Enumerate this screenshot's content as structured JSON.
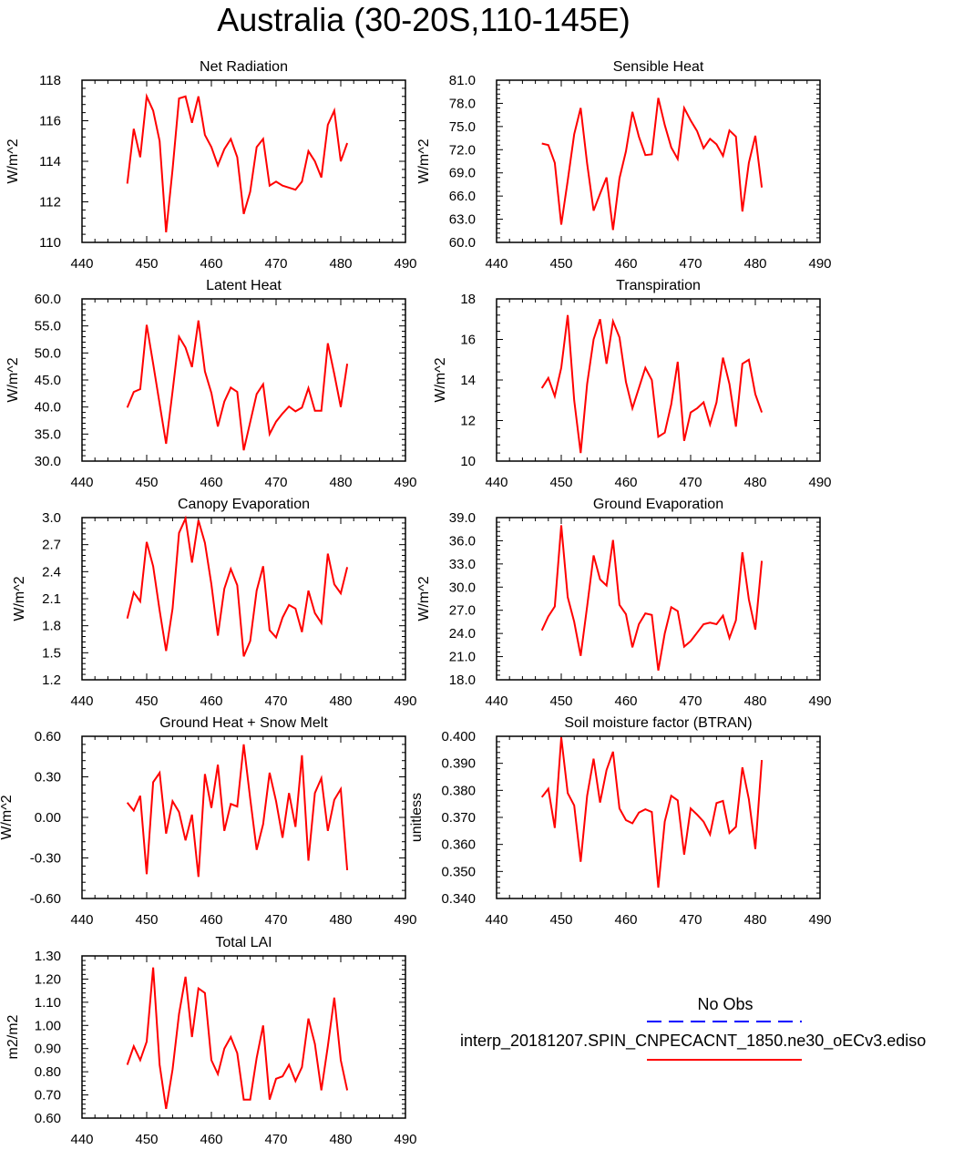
{
  "title": "Australia (30-20S,110-145E)",
  "colors": {
    "series": "#ff0000",
    "obs": "#0000ff",
    "axis": "#000000"
  },
  "legend": {
    "obs_label": "No Obs",
    "model_label": "interp_20181207.SPIN_CNPECACNT_1850.ne30_oECv3.ediso"
  },
  "chart_data": [
    {
      "type": "line",
      "title": "Net Radiation",
      "ylabel": "W/m^2",
      "xlabel": "",
      "xlim": [
        440,
        490
      ],
      "xticks": [
        440,
        450,
        460,
        470,
        480,
        490
      ],
      "ylim": [
        110,
        118
      ],
      "yticks": [
        "110",
        "112",
        "114",
        "116",
        "118"
      ],
      "x": [
        447,
        448,
        449,
        450,
        451,
        452,
        453,
        454,
        455,
        456,
        457,
        458,
        459,
        460,
        461,
        462,
        463,
        464,
        465,
        466,
        467,
        468,
        469,
        470,
        471,
        472,
        473,
        474,
        475,
        476,
        477,
        478,
        479,
        480,
        481
      ],
      "series": [
        {
          "name": "interp_20181207.SPIN_CNPECACNT_1850.ne30_oECv3.ediso",
          "values": [
            112.9,
            115.6,
            114.2,
            117.2,
            116.5,
            115.0,
            110.5,
            113.6,
            117.1,
            117.2,
            115.9,
            117.2,
            115.3,
            114.7,
            113.8,
            114.6,
            115.1,
            114.2,
            111.4,
            112.5,
            114.7,
            115.1,
            112.8,
            113.0,
            112.8,
            112.7,
            112.6,
            113.0,
            114.5,
            114.0,
            113.2,
            115.8,
            116.5,
            114.0,
            114.9
          ]
        }
      ]
    },
    {
      "type": "line",
      "title": "Sensible Heat",
      "ylabel": "W/m^2",
      "xlabel": "",
      "xlim": [
        440,
        490
      ],
      "xticks": [
        440,
        450,
        460,
        470,
        480,
        490
      ],
      "ylim": [
        60,
        81
      ],
      "yticks": [
        "60.0",
        "63.0",
        "66.0",
        "69.0",
        "72.0",
        "75.0",
        "78.0",
        "81.0"
      ],
      "x": [
        447,
        448,
        449,
        450,
        451,
        452,
        453,
        454,
        455,
        456,
        457,
        458,
        459,
        460,
        461,
        462,
        463,
        464,
        465,
        466,
        467,
        468,
        469,
        470,
        471,
        472,
        473,
        474,
        475,
        476,
        477,
        478,
        479,
        480,
        481
      ],
      "series": [
        {
          "name": "interp_20181207.SPIN_CNPECACNT_1850.ne30_oECv3.ediso",
          "values": [
            72.8,
            72.6,
            70.3,
            62.3,
            68.0,
            74.0,
            77.4,
            70.2,
            64.1,
            66.3,
            68.4,
            61.6,
            68.3,
            71.8,
            76.9,
            73.7,
            71.3,
            71.4,
            78.7,
            75.2,
            72.3,
            70.8,
            77.4,
            75.8,
            74.4,
            72.2,
            73.4,
            72.7,
            71.2,
            74.5,
            73.7,
            64.0,
            70.3,
            73.8,
            67.1
          ]
        }
      ]
    },
    {
      "type": "line",
      "title": "Latent Heat",
      "ylabel": "W/m^2",
      "xlabel": "",
      "xlim": [
        440,
        490
      ],
      "xticks": [
        440,
        450,
        460,
        470,
        480,
        490
      ],
      "ylim": [
        30,
        60
      ],
      "yticks": [
        "30.0",
        "35.0",
        "40.0",
        "45.0",
        "50.0",
        "55.0",
        "60.0"
      ],
      "x": [
        447,
        448,
        449,
        450,
        451,
        452,
        453,
        454,
        455,
        456,
        457,
        458,
        459,
        460,
        461,
        462,
        463,
        464,
        465,
        466,
        467,
        468,
        469,
        470,
        471,
        472,
        473,
        474,
        475,
        476,
        477,
        478,
        479,
        480,
        481
      ],
      "series": [
        {
          "name": "interp_20181207.SPIN_CNPECACNT_1850.ne30_oECv3.ediso",
          "values": [
            39.9,
            42.8,
            43.3,
            55.2,
            48.0,
            40.6,
            33.2,
            42.9,
            53.0,
            51.0,
            47.4,
            56.0,
            46.6,
            42.6,
            36.4,
            41.0,
            43.6,
            42.8,
            32.0,
            37.2,
            42.4,
            44.2,
            35.0,
            37.3,
            38.8,
            40.1,
            39.2,
            39.9,
            43.5,
            39.3,
            39.3,
            51.8,
            46.1,
            40.0,
            48.0
          ]
        }
      ]
    },
    {
      "type": "line",
      "title": "Transpiration",
      "ylabel": "W/m^2",
      "xlabel": "",
      "xlim": [
        440,
        490
      ],
      "xticks": [
        440,
        450,
        460,
        470,
        480,
        490
      ],
      "ylim": [
        10,
        18
      ],
      "yticks": [
        "10",
        "12",
        "14",
        "16",
        "18"
      ],
      "x": [
        447,
        448,
        449,
        450,
        451,
        452,
        453,
        454,
        455,
        456,
        457,
        458,
        459,
        460,
        461,
        462,
        463,
        464,
        465,
        466,
        467,
        468,
        469,
        470,
        471,
        472,
        473,
        474,
        475,
        476,
        477,
        478,
        479,
        480,
        481
      ],
      "series": [
        {
          "name": "interp_20181207.SPIN_CNPECACNT_1850.ne30_oECv3.ediso",
          "values": [
            13.6,
            14.1,
            13.2,
            14.6,
            17.2,
            13.0,
            10.4,
            13.8,
            16.0,
            17.0,
            14.8,
            16.9,
            16.1,
            13.9,
            12.6,
            13.6,
            14.6,
            14.0,
            11.2,
            11.4,
            12.8,
            14.9,
            11.0,
            12.4,
            12.6,
            12.9,
            11.8,
            12.9,
            15.1,
            13.8,
            11.7,
            14.8,
            15.0,
            13.3,
            12.4
          ]
        }
      ]
    },
    {
      "type": "line",
      "title": "Canopy Evaporation",
      "ylabel": "W/m^2",
      "xlabel": "",
      "xlim": [
        440,
        490
      ],
      "xticks": [
        440,
        450,
        460,
        470,
        480,
        490
      ],
      "ylim": [
        1.2,
        3.0
      ],
      "yticks": [
        "1.2",
        "1.5",
        "1.8",
        "2.1",
        "2.4",
        "2.7",
        "3.0"
      ],
      "x": [
        447,
        448,
        449,
        450,
        451,
        452,
        453,
        454,
        455,
        456,
        457,
        458,
        459,
        460,
        461,
        462,
        463,
        464,
        465,
        466,
        467,
        468,
        469,
        470,
        471,
        472,
        473,
        474,
        475,
        476,
        477,
        478,
        479,
        480,
        481
      ],
      "series": [
        {
          "name": "interp_20181207.SPIN_CNPECACNT_1850.ne30_oECv3.ediso",
          "values": [
            1.88,
            2.17,
            2.07,
            2.73,
            2.46,
            1.97,
            1.52,
            1.99,
            2.83,
            2.99,
            2.5,
            2.97,
            2.72,
            2.26,
            1.69,
            2.21,
            2.43,
            2.25,
            1.46,
            1.63,
            2.19,
            2.46,
            1.75,
            1.67,
            1.89,
            2.03,
            1.99,
            1.73,
            2.19,
            1.94,
            1.83,
            2.6,
            2.26,
            2.16,
            2.45
          ]
        }
      ]
    },
    {
      "type": "line",
      "title": "Ground Evaporation",
      "ylabel": "W/m^2",
      "xlabel": "",
      "xlim": [
        440,
        490
      ],
      "xticks": [
        440,
        450,
        460,
        470,
        480,
        490
      ],
      "ylim": [
        18,
        39
      ],
      "yticks": [
        "18.0",
        "21.0",
        "24.0",
        "27.0",
        "30.0",
        "33.0",
        "36.0",
        "39.0"
      ],
      "x": [
        447,
        448,
        449,
        450,
        451,
        452,
        453,
        454,
        455,
        456,
        457,
        458,
        459,
        460,
        461,
        462,
        463,
        464,
        465,
        466,
        467,
        468,
        469,
        470,
        471,
        472,
        473,
        474,
        475,
        476,
        477,
        478,
        479,
        480,
        481
      ],
      "series": [
        {
          "name": "interp_20181207.SPIN_CNPECACNT_1850.ne30_oECv3.ediso",
          "values": [
            24.4,
            26.2,
            27.5,
            38.0,
            28.7,
            25.5,
            21.1,
            27.5,
            34.1,
            31.0,
            30.2,
            36.1,
            27.7,
            26.5,
            22.2,
            25.2,
            26.6,
            26.4,
            19.2,
            24.0,
            27.4,
            26.9,
            22.3,
            23.0,
            24.1,
            25.2,
            25.4,
            25.2,
            26.3,
            23.4,
            25.7,
            34.5,
            28.4,
            24.5,
            33.4
          ]
        }
      ]
    },
    {
      "type": "line",
      "title": "Ground Heat + Snow Melt",
      "ylabel": "W/m^2",
      "xlabel": "",
      "xlim": [
        440,
        490
      ],
      "xticks": [
        440,
        450,
        460,
        470,
        480,
        490
      ],
      "ylim": [
        -0.6,
        0.6
      ],
      "yticks": [
        "-0.60",
        "-0.30",
        "0.00",
        "0.30",
        "0.60"
      ],
      "x": [
        447,
        448,
        449,
        450,
        451,
        452,
        453,
        454,
        455,
        456,
        457,
        458,
        459,
        460,
        461,
        462,
        463,
        464,
        465,
        466,
        467,
        468,
        469,
        470,
        471,
        472,
        473,
        474,
        475,
        476,
        477,
        478,
        479,
        480,
        481
      ],
      "series": [
        {
          "name": "interp_20181207.SPIN_CNPECACNT_1850.ne30_oECv3.ediso",
          "values": [
            0.11,
            0.05,
            0.16,
            -0.42,
            0.26,
            0.33,
            -0.12,
            0.12,
            0.04,
            -0.17,
            0.02,
            -0.44,
            0.32,
            0.07,
            0.39,
            -0.1,
            0.1,
            0.08,
            0.54,
            0.14,
            -0.24,
            -0.05,
            0.33,
            0.12,
            -0.15,
            0.18,
            -0.07,
            0.46,
            -0.32,
            0.18,
            0.29,
            -0.1,
            0.13,
            0.21,
            -0.39
          ]
        }
      ]
    },
    {
      "type": "line",
      "title": "Soil moisture factor (BTRAN)",
      "ylabel": "unitless",
      "xlabel": "",
      "xlim": [
        440,
        490
      ],
      "xticks": [
        440,
        450,
        460,
        470,
        480,
        490
      ],
      "ylim": [
        0.34,
        0.4
      ],
      "yticks": [
        "0.340",
        "0.350",
        "0.360",
        "0.370",
        "0.380",
        "0.390",
        "0.400"
      ],
      "x": [
        447,
        448,
        449,
        450,
        451,
        452,
        453,
        454,
        455,
        456,
        457,
        458,
        459,
        460,
        461,
        462,
        463,
        464,
        465,
        466,
        467,
        468,
        469,
        470,
        471,
        472,
        473,
        474,
        475,
        476,
        477,
        478,
        479,
        480,
        481
      ],
      "series": [
        {
          "name": "interp_20181207.SPIN_CNPECACNT_1850.ne30_oECv3.ediso",
          "values": [
            0.3775,
            0.3806,
            0.3661,
            0.3996,
            0.379,
            0.3744,
            0.3536,
            0.378,
            0.3917,
            0.3755,
            0.3875,
            0.3943,
            0.3733,
            0.369,
            0.3678,
            0.3718,
            0.373,
            0.372,
            0.344,
            0.3685,
            0.378,
            0.3763,
            0.3562,
            0.3733,
            0.371,
            0.3684,
            0.3637,
            0.3753,
            0.3761,
            0.3642,
            0.3665,
            0.3885,
            0.3767,
            0.3583,
            0.3912
          ]
        }
      ]
    },
    {
      "type": "line",
      "title": "Total LAI",
      "ylabel": "m2/m2",
      "xlabel": "",
      "xlim": [
        440,
        490
      ],
      "xticks": [
        440,
        450,
        460,
        470,
        480,
        490
      ],
      "ylim": [
        0.6,
        1.3
      ],
      "yticks": [
        "0.60",
        "0.70",
        "0.80",
        "0.90",
        "1.00",
        "1.10",
        "1.20",
        "1.30"
      ],
      "x": [
        447,
        448,
        449,
        450,
        451,
        452,
        453,
        454,
        455,
        456,
        457,
        458,
        459,
        460,
        461,
        462,
        463,
        464,
        465,
        466,
        467,
        468,
        469,
        470,
        471,
        472,
        473,
        474,
        475,
        476,
        477,
        478,
        479,
        480,
        481
      ],
      "series": [
        {
          "name": "interp_20181207.SPIN_CNPECACNT_1850.ne30_oECv3.ediso",
          "values": [
            0.83,
            0.91,
            0.85,
            0.93,
            1.25,
            0.83,
            0.64,
            0.81,
            1.05,
            1.21,
            0.95,
            1.16,
            1.14,
            0.85,
            0.79,
            0.9,
            0.95,
            0.88,
            0.68,
            0.68,
            0.86,
            1.0,
            0.68,
            0.77,
            0.78,
            0.83,
            0.76,
            0.82,
            1.03,
            0.92,
            0.72,
            0.91,
            1.12,
            0.85,
            0.72
          ]
        }
      ]
    }
  ]
}
